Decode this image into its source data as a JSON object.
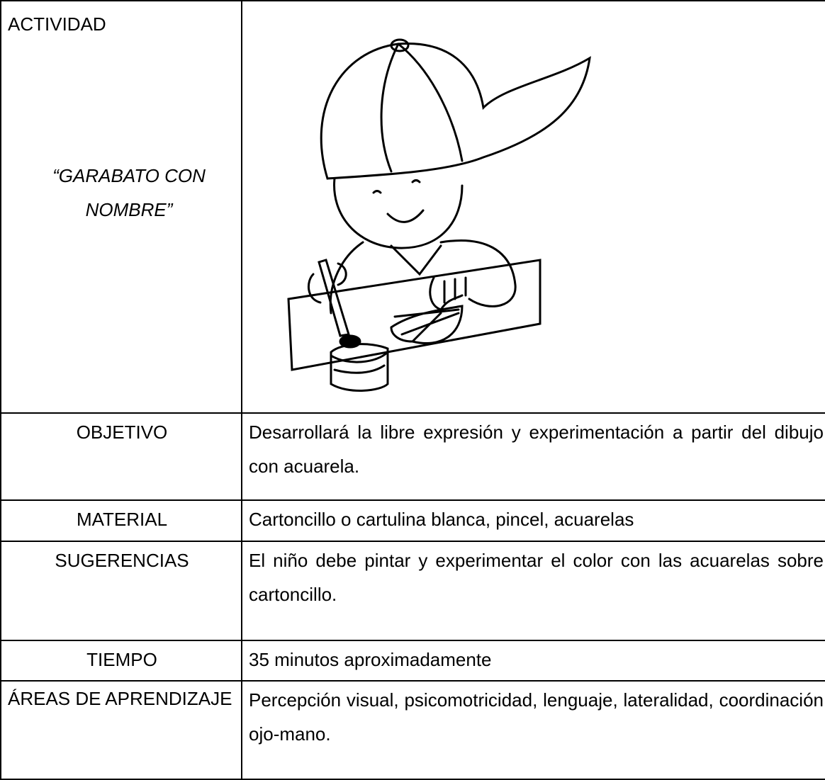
{
  "activity": {
    "label": "ACTIVIDAD",
    "title": "“GARABATO CON NOMBRE”"
  },
  "table": {
    "rows": [
      [
        "OBJETIVO",
        "Desarrollará la libre expresión y experimentación a partir del dibujo con acuarela."
      ],
      [
        "MATERIAL",
        "Cartoncillo o cartulina blanca, pincel, acuarelas"
      ],
      [
        "SUGERENCIAS",
        "El niño debe pintar y experimentar el color con las acuarelas sobre cartoncillo."
      ],
      [
        "TIEMPO",
        "35 minutos aproximadamente"
      ],
      [
        "ÁREAS DE APRENDIZAJE",
        "Percepción visual, psicomotricidad, lenguaje, lateralidad, coordinación ojo-mano."
      ]
    ]
  }
}
